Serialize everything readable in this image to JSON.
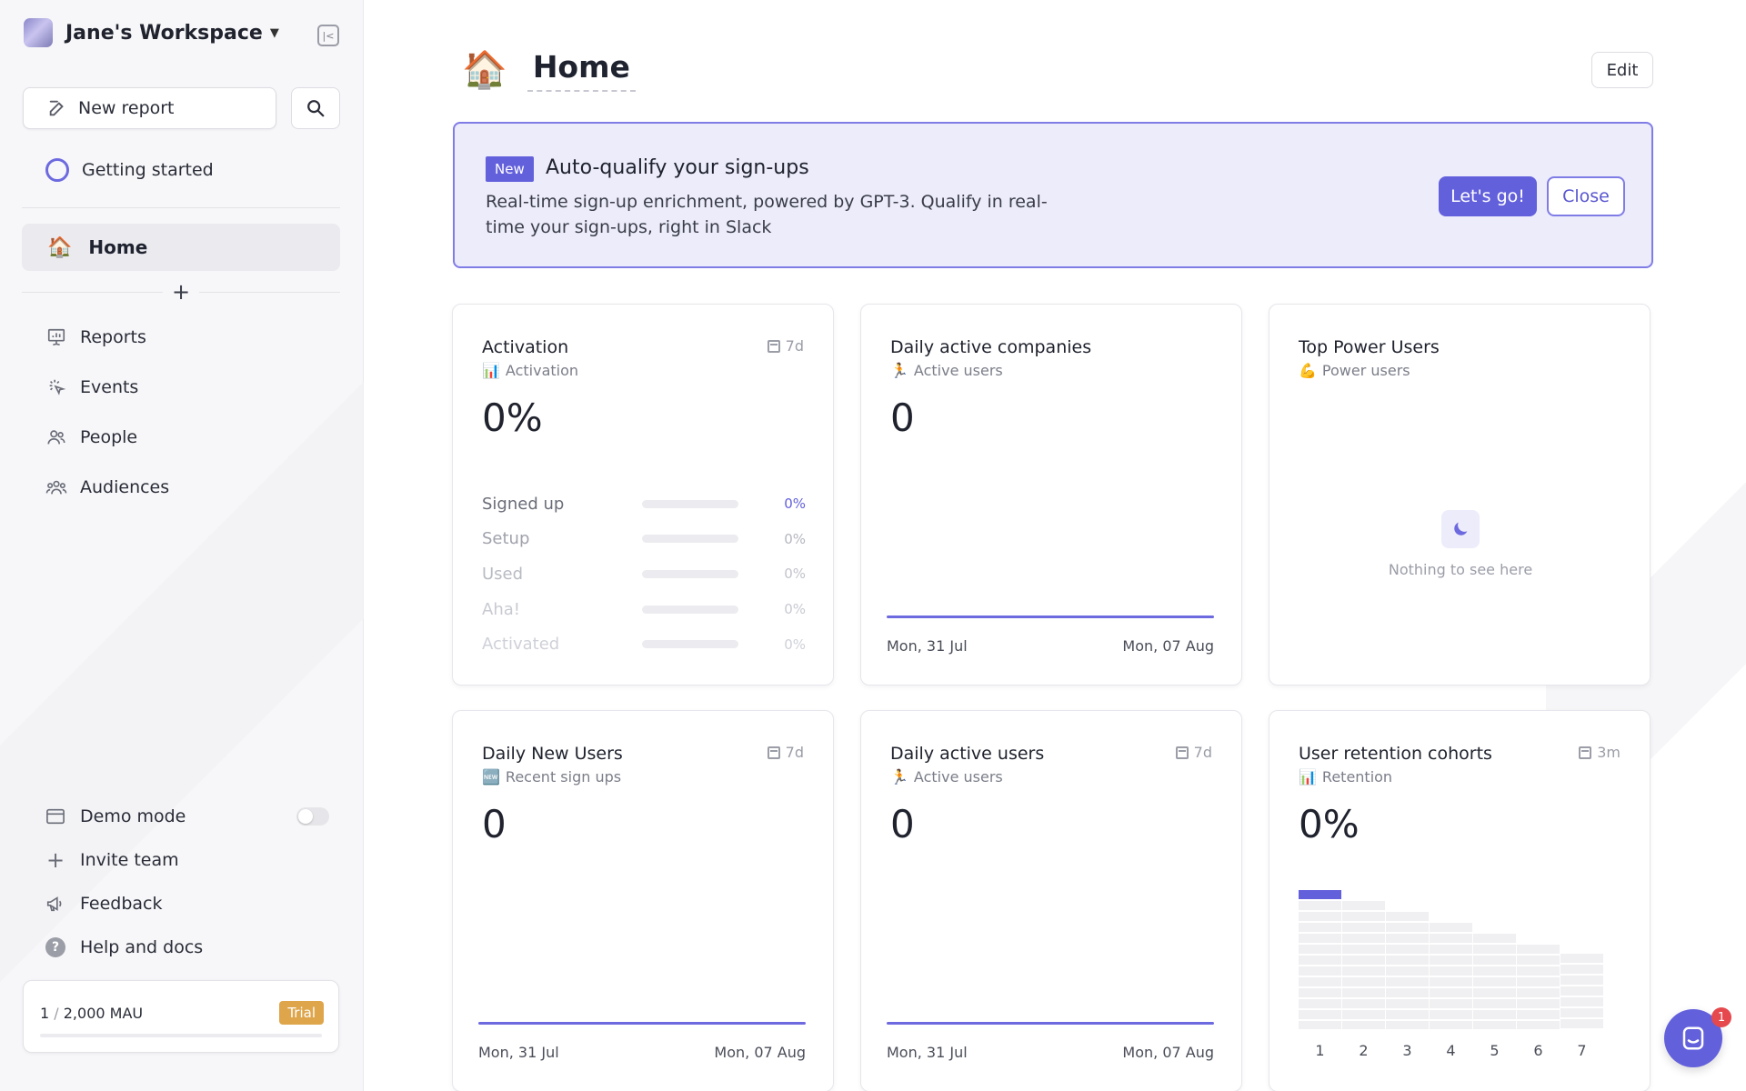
{
  "workspace": {
    "name": "Jane's Workspace"
  },
  "sidebar": {
    "new_report": "New report",
    "getting_started": "Getting started",
    "home": "Home",
    "nav": [
      {
        "label": "Reports",
        "icon": "reports-icon"
      },
      {
        "label": "Events",
        "icon": "events-icon"
      },
      {
        "label": "People",
        "icon": "people-icon"
      },
      {
        "label": "Audiences",
        "icon": "audiences-icon"
      }
    ],
    "bottom": {
      "demo_mode": "Demo mode",
      "invite_team": "Invite team",
      "feedback": "Feedback",
      "help": "Help and docs"
    },
    "mau": {
      "current": "1",
      "limit": "2,000 MAU",
      "badge": "Trial"
    }
  },
  "page": {
    "title": "Home",
    "edit": "Edit"
  },
  "banner": {
    "badge": "New",
    "title": "Auto-qualify your sign-ups",
    "description": "Real-time sign-up enrichment, powered by GPT-3. Qualify in real-time your sign-ups, right in Slack",
    "primary": "Let's go!",
    "secondary": "Close"
  },
  "cards": {
    "activation": {
      "title": "Activation",
      "subtitle": "Activation",
      "range": "7d",
      "value": "0%",
      "steps": [
        {
          "label": "Signed up",
          "value": "0%"
        },
        {
          "label": "Setup",
          "value": "0%"
        },
        {
          "label": "Used",
          "value": "0%"
        },
        {
          "label": "Aha!",
          "value": "0%"
        },
        {
          "label": "Activated",
          "value": "0%"
        }
      ]
    },
    "daily_companies": {
      "title": "Daily active companies",
      "subtitle": "Active users",
      "value": "0",
      "x_start": "Mon, 31 Jul",
      "x_end": "Mon, 07 Aug"
    },
    "power_users": {
      "title": "Top Power Users",
      "subtitle": "Power users",
      "empty": "Nothing to see here"
    },
    "new_users": {
      "title": "Daily New Users",
      "subtitle": "Recent sign ups",
      "range": "7d",
      "value": "0",
      "x_start": "Mon, 31 Jul",
      "x_end": "Mon, 07 Aug"
    },
    "active_users": {
      "title": "Daily active users",
      "subtitle": "Active users",
      "range": "7d",
      "value": "0",
      "x_start": "Mon, 31 Jul",
      "x_end": "Mon, 07 Aug"
    },
    "retention": {
      "title": "User retention cohorts",
      "subtitle": "Retention",
      "range": "3m",
      "value": "0%",
      "periods": [
        "1",
        "2",
        "3",
        "4",
        "5",
        "6",
        "7"
      ]
    }
  },
  "chat": {
    "badge": "1"
  },
  "colors": {
    "accent": "#6360dc",
    "banner_bg": "#ececfb",
    "trial": "#dea54b"
  }
}
